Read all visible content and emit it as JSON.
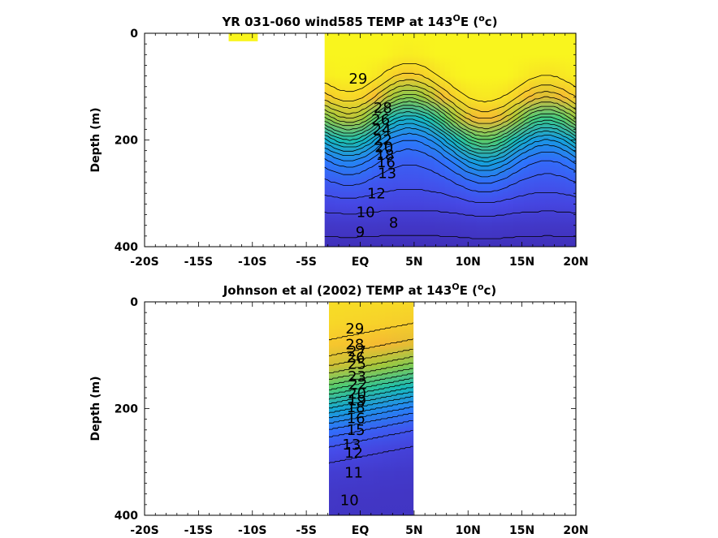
{
  "chart_data": [
    {
      "type": "contour",
      "title_main": "YR 031-060 wind585 TEMP at 143",
      "title_sup": "O",
      "title_mid": "E (",
      "title_sup2": "o",
      "title_end": "c)",
      "ylabel": "Depth (m)",
      "xlim": [
        -20,
        20
      ],
      "ylim": [
        0,
        400
      ],
      "x_tick_values": [
        -20,
        -15,
        -10,
        -5,
        0,
        5,
        10,
        15,
        20
      ],
      "x_tick_labels": [
        "-20S",
        "-15S",
        "-10S",
        "-5S",
        "EQ",
        "5N",
        "10N",
        "15N",
        "20N"
      ],
      "y_tick_values": [
        0,
        200,
        400
      ],
      "y_tick_labels": [
        "0",
        "200",
        "400"
      ],
      "data_lat_range": [
        -3.3,
        20
      ],
      "patch_lat_range": [
        -12.2,
        -9.5
      ],
      "patch_depth_range": [
        0,
        15
      ],
      "contour_levels": [
        8,
        9,
        10,
        11,
        12,
        13,
        14,
        15,
        16,
        17,
        18,
        19,
        20,
        21,
        22,
        23,
        24,
        25,
        26,
        27,
        28,
        29
      ],
      "contour_labels": [
        {
          "text": "29",
          "lat": -0.2,
          "depth": 85
        },
        {
          "text": "28",
          "lat": 2.1,
          "depth": 140
        },
        {
          "text": "26",
          "lat": 1.9,
          "depth": 162
        },
        {
          "text": "24",
          "lat": 2.0,
          "depth": 181
        },
        {
          "text": "22",
          "lat": 2.1,
          "depth": 200
        },
        {
          "text": "20",
          "lat": 2.2,
          "depth": 214
        },
        {
          "text": "18",
          "lat": 2.3,
          "depth": 228
        },
        {
          "text": "16",
          "lat": 2.4,
          "depth": 242
        },
        {
          "text": "13",
          "lat": 2.5,
          "depth": 262
        },
        {
          "text": "12",
          "lat": 1.5,
          "depth": 300
        },
        {
          "text": "10",
          "lat": 0.5,
          "depth": 335
        },
        {
          "text": "8",
          "lat": 3.1,
          "depth": 355
        },
        {
          "text": "9",
          "lat": 0.0,
          "depth": 373
        }
      ]
    },
    {
      "type": "contour",
      "title_main": "Johnson et al (2002) TEMP at 143",
      "title_sup": "O",
      "title_mid": "E (",
      "title_sup2": "o",
      "title_end": "c)",
      "ylabel": "Depth (m)",
      "xlim": [
        -20,
        20
      ],
      "ylim": [
        0,
        400
      ],
      "x_tick_values": [
        -20,
        -15,
        -10,
        -5,
        0,
        5,
        10,
        15,
        20
      ],
      "x_tick_labels": [
        "-20S",
        "-15S",
        "-10S",
        "-5S",
        "EQ",
        "5N",
        "10N",
        "15N",
        "20N"
      ],
      "y_tick_values": [
        0,
        200,
        400
      ],
      "y_tick_labels": [
        "0",
        "200",
        "400"
      ],
      "data_lat_range": [
        -2.9,
        4.9
      ],
      "contour_levels": [
        10,
        11,
        12,
        13,
        14,
        15,
        16,
        17,
        18,
        19,
        20,
        21,
        22,
        23,
        24,
        25,
        26,
        27,
        28,
        29
      ],
      "contour_labels": [
        {
          "text": "29",
          "lat": -0.5,
          "depth": 50
        },
        {
          "text": "28",
          "lat": -0.5,
          "depth": 80
        },
        {
          "text": "27",
          "lat": -0.3,
          "depth": 93
        },
        {
          "text": "26",
          "lat": -0.4,
          "depth": 104
        },
        {
          "text": "25",
          "lat": -0.3,
          "depth": 116
        },
        {
          "text": "23",
          "lat": -0.3,
          "depth": 140
        },
        {
          "text": "22",
          "lat": -0.2,
          "depth": 154
        },
        {
          "text": "20",
          "lat": -0.3,
          "depth": 172
        },
        {
          "text": "19",
          "lat": -0.3,
          "depth": 185
        },
        {
          "text": "18",
          "lat": -0.4,
          "depth": 198
        },
        {
          "text": "16",
          "lat": -0.4,
          "depth": 218
        },
        {
          "text": "15",
          "lat": -0.4,
          "depth": 240
        },
        {
          "text": "13",
          "lat": -0.8,
          "depth": 268
        },
        {
          "text": "12",
          "lat": -0.6,
          "depth": 283
        },
        {
          "text": "11",
          "lat": -0.6,
          "depth": 320
        },
        {
          "text": "10",
          "lat": -1.0,
          "depth": 372
        }
      ]
    }
  ]
}
